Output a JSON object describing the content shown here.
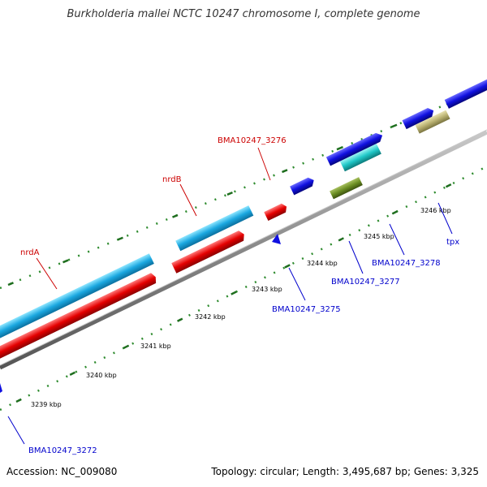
{
  "title": "Burkholderia mallei NCTC 10247 chromosome I, complete genome",
  "footer": {
    "accession": "Accession: NC_009080",
    "info": "Topology: circular; Length: 3,495,687 bp; Genes: 3,325"
  },
  "colors": {
    "background": "#ffffff",
    "backbone": "#888888",
    "tick": "#2e8b2e",
    "forward_cds": "#1aa7e0",
    "reverse_cds": "#e50000",
    "forward_gene": "#1010e0",
    "reverse_other": "#6b8e23",
    "teal_cds": "#20c8c8",
    "khaki_cds": "#b8b070",
    "label_red": "#cc0000",
    "label_blue": "#0000cc"
  },
  "tick_labels": [
    "3239 kbp",
    "3240 kbp",
    "3241 kbp",
    "3242 kbp",
    "3243 kbp",
    "3244 kbp",
    "3245 kbp",
    "3246 kbp"
  ],
  "gene_labels": [
    {
      "text": "BMA10247_3276",
      "color": "red"
    },
    {
      "text": "nrdB",
      "color": "red"
    },
    {
      "text": "nrdA",
      "color": "red"
    },
    {
      "text": "tpx",
      "color": "blue"
    },
    {
      "text": "BMA10247_3278",
      "color": "blue"
    },
    {
      "text": "BMA10247_3277",
      "color": "blue"
    },
    {
      "text": "BMA10247_3275",
      "color": "blue"
    },
    {
      "text": "BMA10247_3272",
      "color": "blue"
    }
  ]
}
